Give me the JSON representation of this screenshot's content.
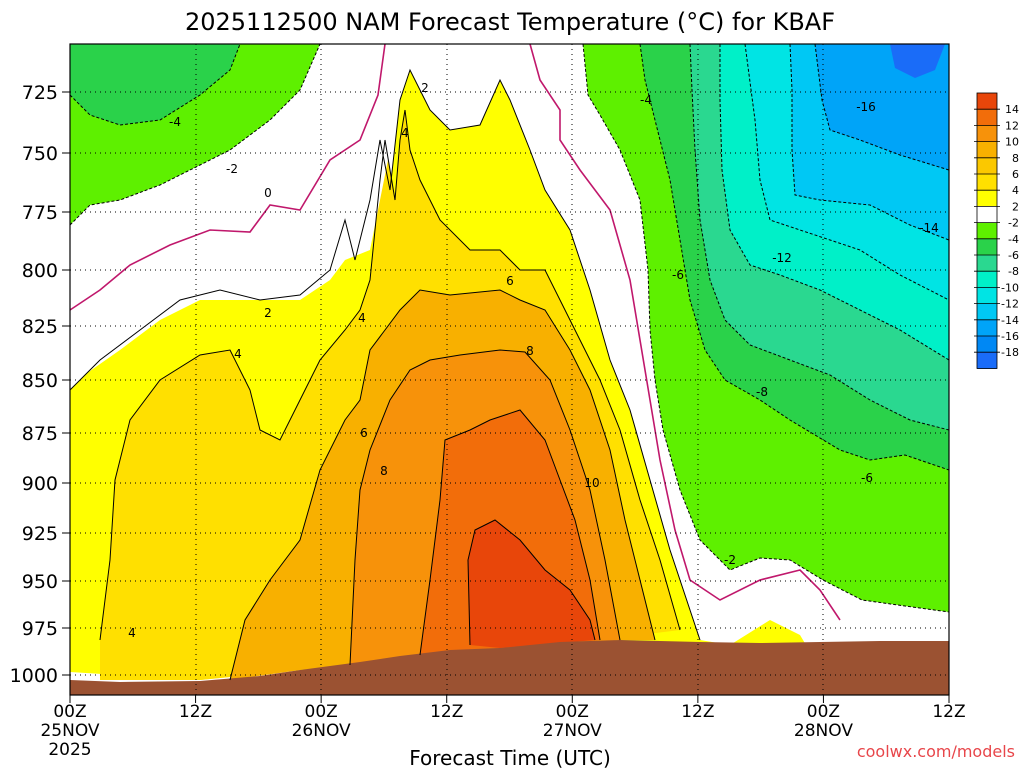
{
  "chart_data": {
    "type": "heatmap",
    "title": "2025112500 NAM Forecast Temperature (°C) for KBAF",
    "xlabel": "Forecast Time (UTC)",
    "ylabel": "",
    "x_ticks": [
      {
        "hours": 0,
        "lines": [
          "00Z",
          "25NOV",
          "2025"
        ]
      },
      {
        "hours": 12,
        "lines": [
          "12Z"
        ]
      },
      {
        "hours": 24,
        "lines": [
          "00Z",
          "26NOV"
        ]
      },
      {
        "hours": 36,
        "lines": [
          "12Z"
        ]
      },
      {
        "hours": 48,
        "lines": [
          "00Z",
          "27NOV"
        ]
      },
      {
        "hours": 60,
        "lines": [
          "12Z"
        ]
      },
      {
        "hours": 72,
        "lines": [
          "00Z",
          "28NOV"
        ]
      },
      {
        "hours": 84,
        "lines": [
          "12Z"
        ]
      }
    ],
    "xlim_hours": [
      0,
      84
    ],
    "y_ticks": [
      "725",
      "750",
      "775",
      "800",
      "825",
      "850",
      "875",
      "900",
      "925",
      "950",
      "975",
      "1000"
    ],
    "ylim_hPa": [
      706,
      1010
    ],
    "colorbar": {
      "labels": [
        "14",
        "12",
        "10",
        "8",
        "6",
        "4",
        "2",
        "-2",
        "-4",
        "-6",
        "-8",
        "-10",
        "-12",
        "-14",
        "-16",
        "-18"
      ],
      "colors": [
        "#e8460a",
        "#f26d0a",
        "#f7920a",
        "#f8b000",
        "#fbc800",
        "#ffe000",
        "#ffff00",
        "#ffffff",
        "#5ef000",
        "#2ad24a",
        "#2ad890",
        "#00f0c8",
        "#00e4e4",
        "#00c8f4",
        "#00a4f8",
        "#0088f4",
        "#1a6cf8"
      ]
    },
    "series": [
      {
        "name": "temperature",
        "profile_hours": [
          0,
          6,
          12,
          18,
          24,
          30,
          36,
          42,
          48,
          54,
          60,
          66,
          72,
          78,
          84
        ],
        "surface_value_C": [
          3,
          3,
          4,
          5,
          6,
          7,
          9,
          12,
          13,
          10,
          4,
          0,
          -2,
          -4,
          -5
        ],
        "at_850hPa_C": [
          1,
          4,
          4,
          3,
          5,
          6,
          8,
          8,
          8,
          3,
          -5,
          -7,
          -8,
          -7,
          -6
        ],
        "at_750hPa_C": [
          -4,
          -3,
          -1,
          0,
          1,
          3,
          4,
          5,
          4,
          0,
          -5,
          -11,
          -15,
          -16,
          -17
        ]
      }
    ],
    "contour_labels": [
      "-4",
      "-2",
      "0",
      "2",
      "2",
      "4",
      "4",
      "4",
      "4",
      "6",
      "6",
      "8",
      "8",
      "10",
      "-4",
      "-6",
      "-2",
      "-12",
      "-16",
      "-14",
      "-8",
      "-6"
    ]
  },
  "credit": "coolwx.com/models"
}
